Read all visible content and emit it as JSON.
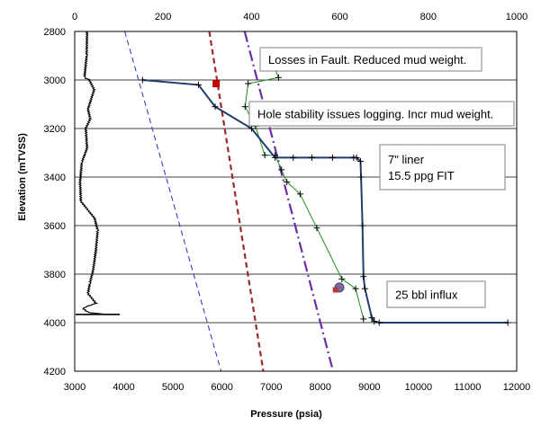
{
  "chart_data": {
    "type": "line",
    "xlabel": "Pressure (psia)",
    "ylabel": "Elevation (mTVSS)",
    "x_bottom": {
      "range": [
        3000,
        12000
      ],
      "ticks": [
        3000,
        4000,
        5000,
        6000,
        7000,
        8000,
        9000,
        10000,
        11000,
        12000
      ]
    },
    "x_top": {
      "range": [
        0,
        1000
      ],
      "ticks": [
        0,
        200,
        400,
        600,
        800,
        1000
      ]
    },
    "y": {
      "range": [
        2800,
        4200
      ],
      "reversed": true,
      "ticks": [
        2800,
        3000,
        3200,
        3400,
        3600,
        3800,
        4000,
        4200
      ]
    },
    "grid": {
      "horizontal": true,
      "vertical": false
    },
    "colors": {
      "blue_dashed": "#2a2ad0",
      "red_dashed": "#9b2b2b",
      "purple_dashdot": "#6a2ea6",
      "green_line": "#1f8f1f",
      "navy_line": "#1f3d6e",
      "log_trace": "#000000",
      "red_square": "#c00000",
      "purple_circle": "#7b6a9e",
      "small_square": "#b04040"
    },
    "series": [
      {
        "style": "blue-dashed",
        "points": [
          [
            4020,
            2800
          ],
          [
            5980,
            4200
          ]
        ]
      },
      {
        "style": "red-dashed",
        "points": [
          [
            5740,
            2800
          ],
          [
            6840,
            4200
          ]
        ]
      },
      {
        "style": "purple-dashdot",
        "points": [
          [
            6460,
            2800
          ],
          [
            8260,
            4200
          ]
        ]
      },
      {
        "style": "green-line",
        "points": [
          [
            6990,
            2910
          ],
          [
            7150,
            2990
          ],
          [
            6530,
            3015
          ],
          [
            6470,
            3110
          ],
          [
            6680,
            3190
          ],
          [
            6870,
            3310
          ],
          [
            7080,
            3310
          ],
          [
            7210,
            3370
          ],
          [
            7320,
            3420
          ],
          [
            7590,
            3470
          ],
          [
            7930,
            3610
          ],
          [
            8440,
            3820
          ],
          [
            8720,
            3860
          ],
          [
            8880,
            3985
          ]
        ]
      },
      {
        "style": "navy-line",
        "points": [
          [
            4380,
            3000
          ],
          [
            5520,
            3020
          ],
          [
            5860,
            3110
          ],
          [
            6600,
            3200
          ],
          [
            7080,
            3320
          ],
          [
            7450,
            3320
          ],
          [
            7830,
            3320
          ],
          [
            8250,
            3320
          ],
          [
            8680,
            3320
          ],
          [
            8740,
            3320
          ],
          [
            8820,
            3335
          ],
          [
            8830,
            3400
          ],
          [
            8860,
            3600
          ],
          [
            8880,
            3810
          ],
          [
            8910,
            3860
          ],
          [
            9050,
            3980
          ],
          [
            9100,
            3995
          ],
          [
            9200,
            4000
          ],
          [
            11820,
            4000
          ]
        ]
      },
      {
        "style": "log-trace",
        "axis": "top",
        "points": [
          [
            28,
            2800
          ],
          [
            27,
            2900
          ],
          [
            22,
            2990
          ],
          [
            33,
            3000
          ],
          [
            44,
            3040
          ],
          [
            30,
            3120
          ],
          [
            35,
            3160
          ],
          [
            25,
            3200
          ],
          [
            28,
            3280
          ],
          [
            16,
            3340
          ],
          [
            12,
            3420
          ],
          [
            14,
            3500
          ],
          [
            45,
            3570
          ],
          [
            52,
            3620
          ],
          [
            48,
            3700
          ],
          [
            42,
            3780
          ],
          [
            34,
            3840
          ],
          [
            30,
            3880
          ],
          [
            48,
            3920
          ],
          [
            18,
            3940
          ],
          [
            30,
            3958
          ],
          [
            72,
            3966
          ]
        ]
      }
    ],
    "markers": [
      {
        "shape": "square",
        "color": "red_square",
        "x": 5880,
        "y": 3015
      },
      {
        "shape": "circle",
        "color": "purple_circle",
        "x": 8390,
        "y": 3855
      },
      {
        "shape": "square",
        "color": "small_square",
        "x": 8310,
        "y": 3865
      }
    ],
    "annotations": [
      {
        "lines": [
          "Losses in Fault. Reduced mud weight."
        ]
      },
      {
        "lines": [
          "Hole stability issues logging. Incr mud weight."
        ]
      },
      {
        "lines": [
          "7\" liner",
          "15.5 ppg FIT"
        ]
      },
      {
        "lines": [
          "25 bbl influx"
        ]
      }
    ]
  }
}
